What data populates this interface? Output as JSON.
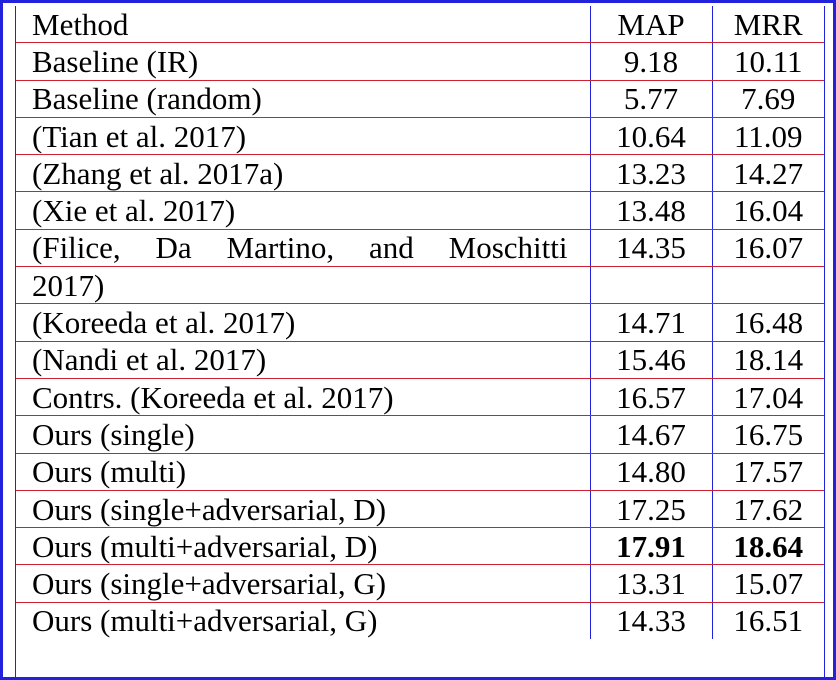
{
  "table": {
    "headers": {
      "method": "Method",
      "map": "MAP",
      "mrr": "MRR"
    },
    "rows": [
      {
        "method": "Baseline (IR)",
        "map": "9.18",
        "mrr": "10.11"
      },
      {
        "method": "Baseline (random)",
        "map": "5.77",
        "mrr": "7.69"
      },
      {
        "method": "(Tian et al. 2017)",
        "map": "10.64",
        "mrr": "11.09"
      },
      {
        "method": "(Zhang et al. 2017a)",
        "map": "13.23",
        "mrr": "14.27"
      },
      {
        "method": "(Xie et al. 2017)",
        "map": "13.48",
        "mrr": "16.04"
      },
      {
        "method": "(Filice, Da Martino, and Moschitti",
        "method_cont": "2017)",
        "map": "14.35",
        "mrr": "16.07"
      },
      {
        "method": "(Koreeda et al. 2017)",
        "map": "14.71",
        "mrr": "16.48"
      },
      {
        "method": "(Nandi et al. 2017)",
        "map": "15.46",
        "mrr": "18.14"
      },
      {
        "method": "Contrs. (Koreeda et al. 2017)",
        "map": "16.57",
        "mrr": "17.04"
      },
      {
        "method": "Ours (single)",
        "map": "14.67",
        "mrr": "16.75"
      },
      {
        "method": "Ours (multi)",
        "map": "14.80",
        "mrr": "17.57"
      },
      {
        "method": "Ours (single+adversarial, D)",
        "map": "17.25",
        "mrr": "17.62"
      },
      {
        "method": "Ours (multi+adversarial, D)",
        "map": "17.91",
        "mrr": "18.64"
      },
      {
        "method": "Ours (single+adversarial, G)",
        "map": "13.31",
        "mrr": "15.07"
      },
      {
        "method": "Ours (multi+adversarial, G)",
        "map": "14.33",
        "mrr": "16.51"
      }
    ]
  }
}
